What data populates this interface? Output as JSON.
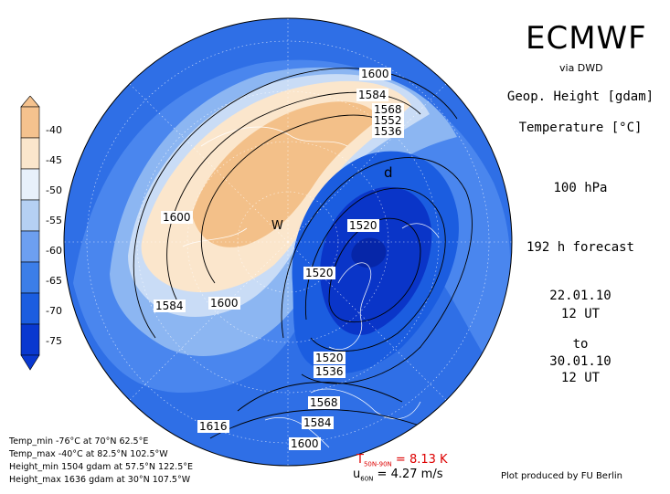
{
  "header": {
    "brand": "ECMWF",
    "source": "via DWD",
    "variable_1": "Geop. Height [gdam]",
    "variable_2": "Temperature [°C]",
    "level": "100 hPa",
    "forecast": "192 h forecast",
    "init_date": "22.01.10",
    "init_time": "12 UT",
    "to": "to",
    "valid_date": "30.01.10",
    "valid_time": "12 UT"
  },
  "colorbar": {
    "labels": [
      "-40",
      "-45",
      "-50",
      "-55",
      "-60",
      "-65",
      "-70",
      "-75"
    ],
    "colors": [
      "#f5c28e",
      "#fbe6cc",
      "#e8f0fb",
      "#b5d0f3",
      "#6d9ff0",
      "#3c7ee8",
      "#1b5de0",
      "#0938d0"
    ]
  },
  "contour_labels": [
    "1600",
    "1584",
    "1568",
    "1552",
    "1536",
    "1520",
    "1600",
    "1584",
    "1600",
    "1520",
    "1520",
    "1536",
    "1568",
    "1584",
    "1600",
    "1616"
  ],
  "map_markers": {
    "warm": "W",
    "cold": "d"
  },
  "stats": {
    "temp_min": "Temp_min -76°C at 70°N 62.5°E",
    "temp_max": "Temp_max -40°C at 82.5°N 102.5°W",
    "height_min": "Height_min 1504 gdam at 57.5°N 122.5°E",
    "height_max": "Height_max 1636 gdam at 30°N 107.5°W"
  },
  "diagnostics": {
    "t_label": "T",
    "t_sub": "50N-90N",
    "t_value": "= 8.13 K",
    "u_label": "u",
    "u_sub": "60N",
    "u_value": "= 4.27 m/s"
  },
  "credit": "Plot produced by FU Berlin",
  "accent_colors": {
    "deep": "#0a35c8",
    "mid": "#2f6fe6",
    "light": "#8cb6f2",
    "warm": "#f3c089"
  }
}
